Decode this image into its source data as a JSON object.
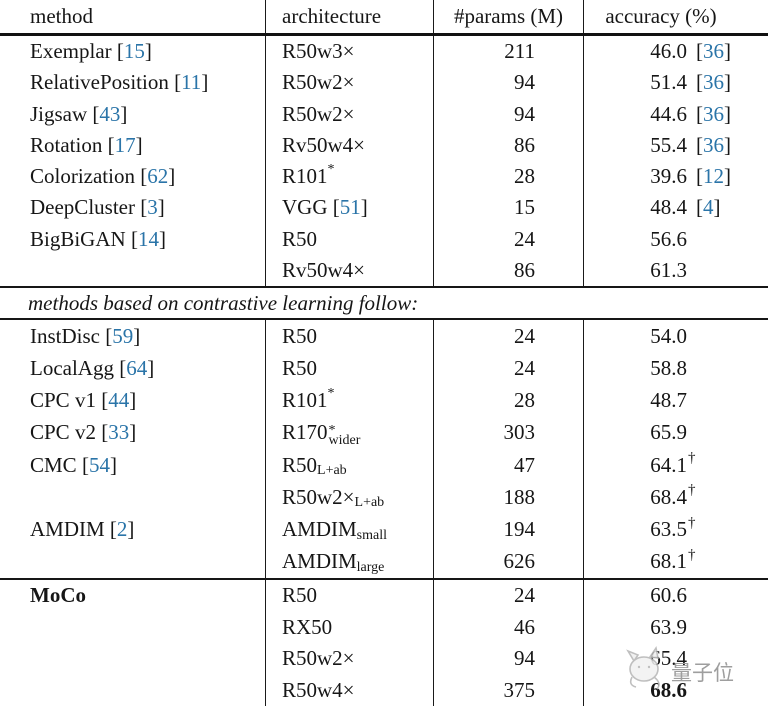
{
  "page": {
    "background": "#ffffff",
    "text_color": "#161616",
    "rule_color": "#111111",
    "citation_color": "#2a74a8"
  },
  "table": {
    "headers": [
      "method",
      "architecture",
      "#params (M)",
      "accuracy (%)"
    ],
    "divider_text": "methods based on contrastive learning follow:",
    "sections": [
      {
        "name": "pretext-task-methods",
        "rows": [
          {
            "method": "Exemplar",
            "mcite": "15",
            "arch": "R50w3×",
            "params": "211",
            "acc": "46.0",
            "acite": "36"
          },
          {
            "method": "RelativePosition",
            "mcite": "11",
            "arch": "R50w2×",
            "params": "94",
            "acc": "51.4",
            "acite": "36"
          },
          {
            "method": "Jigsaw",
            "mcite": "43",
            "arch": "R50w2×",
            "params": "94",
            "acc": "44.6",
            "acite": "36"
          },
          {
            "method": "Rotation",
            "mcite": "17",
            "arch": "Rv50w4×",
            "params": "86",
            "acc": "55.4",
            "acite": "36"
          },
          {
            "method": "Colorization",
            "mcite": "62",
            "arch": "R101",
            "asup": "*",
            "params": "28",
            "acc": "39.6",
            "acite": "12"
          },
          {
            "method": "DeepCluster",
            "mcite": "3",
            "arch": "VGG",
            "acite2": "51",
            "params": "15",
            "acc": "48.4",
            "acite": "4"
          },
          {
            "method": "BigBiGAN",
            "mcite": "14",
            "arch": "R50",
            "params": "24",
            "acc": "56.6"
          },
          {
            "method": "",
            "arch": "Rv50w4×",
            "params": "86",
            "acc": "61.3"
          }
        ]
      },
      {
        "name": "contrastive-learning-methods",
        "rows": [
          {
            "method": "InstDisc",
            "mcite": "59",
            "arch": "R50",
            "params": "24",
            "acc": "54.0"
          },
          {
            "method": "LocalAgg",
            "mcite": "64",
            "arch": "R50",
            "params": "24",
            "acc": "58.8"
          },
          {
            "method": "CPC v1",
            "mcite": "44",
            "arch": "R101",
            "asup": "*",
            "params": "28",
            "acc": "48.7"
          },
          {
            "method": "CPC v2",
            "mcite": "33",
            "arch": "R170",
            "asup": "*",
            "asub": "wider",
            "params": "303",
            "acc": "65.9"
          },
          {
            "method": "CMC",
            "mcite": "54",
            "arch": "R50",
            "asub": "L+ab",
            "params": "47",
            "acc": "64.1",
            "adag": true
          },
          {
            "method": "",
            "arch": "R50w2×",
            "asub": "L+ab",
            "params": "188",
            "acc": "68.4",
            "adag": true
          },
          {
            "method": "AMDIM",
            "mcite": "2",
            "arch": "AMDIM",
            "asub": "small",
            "params": "194",
            "acc": "63.5",
            "adag": true
          },
          {
            "method": "",
            "arch": "AMDIM",
            "asub": "large",
            "params": "626",
            "acc": "68.1",
            "adag": true
          }
        ]
      },
      {
        "name": "moco-results",
        "rows": [
          {
            "method": "MoCo",
            "mbold": true,
            "arch": "R50",
            "params": "24",
            "acc": "60.6"
          },
          {
            "method": "",
            "arch": "RX50",
            "params": "46",
            "acc": "63.9"
          },
          {
            "method": "",
            "arch": "R50w2×",
            "params": "94",
            "acc": "65.4"
          },
          {
            "method": "",
            "arch": "R50w4×",
            "params": "375",
            "acc": "68.6",
            "abold": true
          }
        ]
      }
    ]
  },
  "watermark": {
    "text": "量子位",
    "color": "#9e9e9e"
  }
}
